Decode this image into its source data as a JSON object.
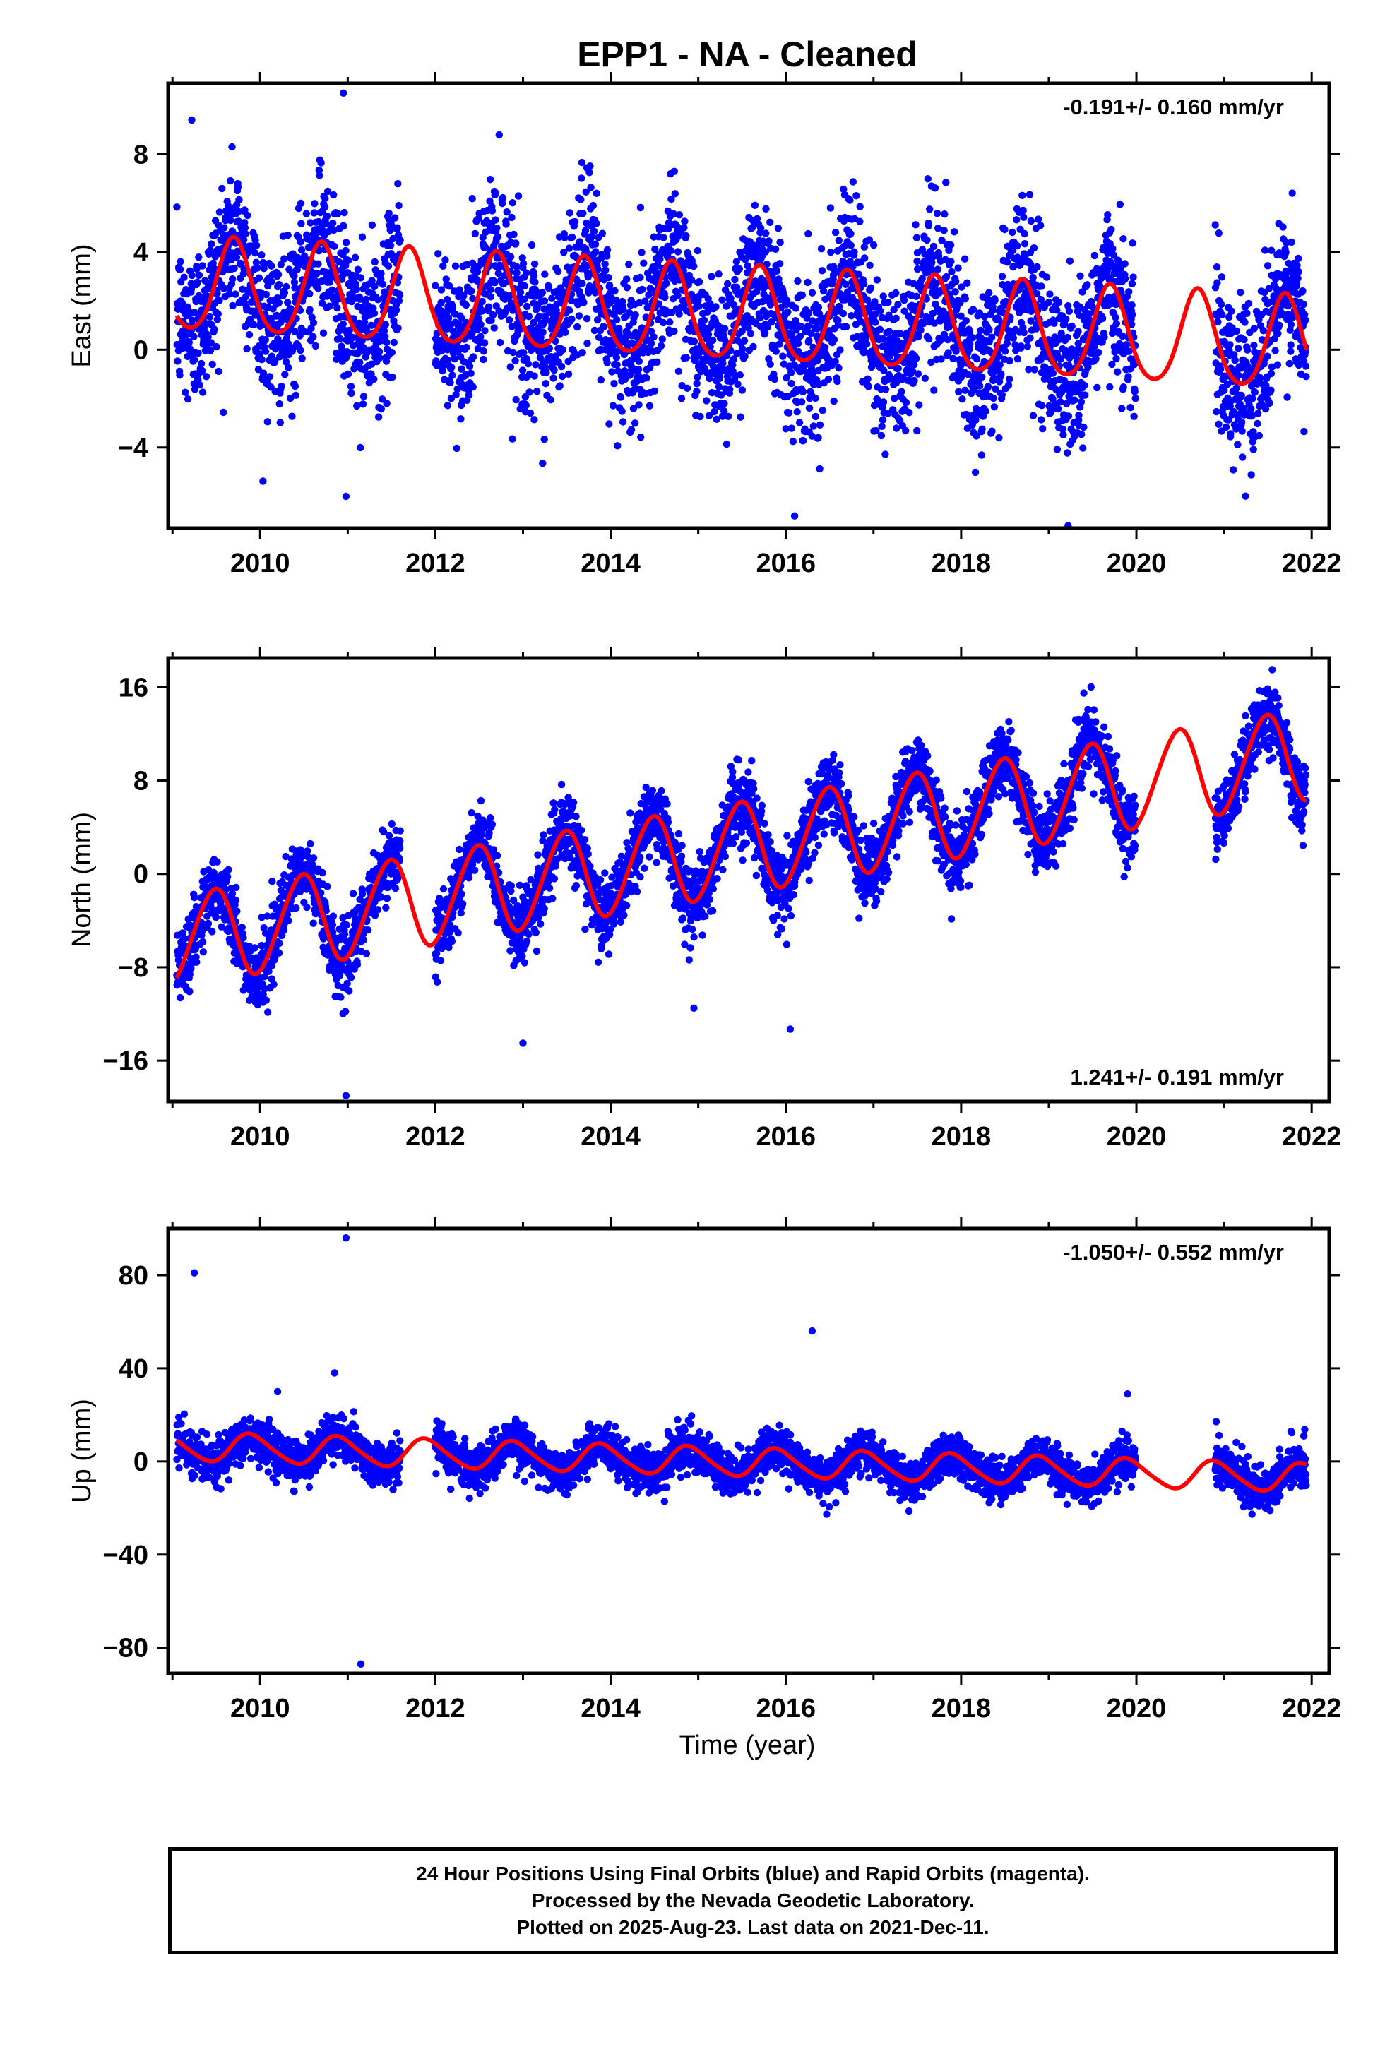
{
  "title": "EPP1  - NA - Cleaned",
  "xlabel": "Time (year)",
  "colors": {
    "points": "#0000ff",
    "model": "#ff0000",
    "axes": "#000000"
  },
  "chart_data": [
    {
      "type": "scatter",
      "component": "east",
      "ylabel": "East (mm)",
      "rate_label": "-0.191+/- 0.160 mm/yr",
      "rate_position": "top-right",
      "xlim": [
        2008.95,
        2022.2
      ],
      "ylim": [
        -7.3,
        10.9
      ],
      "xticks": [
        2010,
        2012,
        2014,
        2016,
        2018,
        2020,
        2022
      ],
      "yticks": [
        -4,
        0,
        4,
        8
      ],
      "grid": false,
      "series": [
        {
          "kind": "observations",
          "marker": "dot",
          "color": "#0000ff",
          "segments": [
            [
              2009.05,
              2011.6
            ],
            [
              2012.0,
              2019.99
            ],
            [
              2020.9,
              2021.94
            ]
          ],
          "scatter_mm": 1.6,
          "outliers": [
            [
              2009.22,
              9.4
            ],
            [
              2010.95,
              10.5
            ],
            [
              2010.98,
              -6.0
            ],
            [
              2019.22,
              -7.2
            ],
            [
              2016.1,
              -6.8
            ],
            [
              2013.8,
              5.9
            ]
          ]
        },
        {
          "kind": "model",
          "color": "#ff0000",
          "x_start": 2009.05,
          "x_end": 2021.94,
          "intercept_at_2009": 2.6,
          "rate_mm_per_yr": -0.191,
          "annual_amplitude": 1.9,
          "annual_peak": 0.7,
          "semiannual_amplitude": 0.25,
          "semiannual_peak": 0.2
        }
      ]
    },
    {
      "type": "scatter",
      "component": "north",
      "ylabel": "North (mm)",
      "rate_label": "1.241+/- 0.191 mm/yr",
      "rate_position": "bottom-right",
      "xlim": [
        2008.95,
        2022.2
      ],
      "ylim": [
        -19.5,
        18.5
      ],
      "xticks": [
        2010,
        2012,
        2014,
        2016,
        2018,
        2020,
        2022
      ],
      "yticks": [
        -16,
        -8,
        0,
        8,
        16
      ],
      "grid": false,
      "series": [
        {
          "kind": "observations",
          "marker": "dot",
          "color": "#0000ff",
          "segments": [
            [
              2009.05,
              2011.6
            ],
            [
              2012.0,
              2019.99
            ],
            [
              2020.9,
              2021.94
            ]
          ],
          "scatter_mm": 1.5,
          "outliers": [
            [
              2010.98,
              -19.0
            ],
            [
              2013.0,
              -14.5
            ],
            [
              2014.95,
              -11.5
            ],
            [
              2016.05,
              -13.3
            ],
            [
              2021.55,
              17.5
            ],
            [
              2019.4,
              15.5
            ]
          ]
        },
        {
          "kind": "model",
          "color": "#ff0000",
          "x_start": 2009.05,
          "x_end": 2021.94,
          "intercept_at_2009": -5.8,
          "rate_mm_per_yr": 1.241,
          "annual_amplitude": 3.9,
          "annual_peak": 0.47,
          "semiannual_amplitude": 0.3,
          "semiannual_peak": 0.1
        }
      ]
    },
    {
      "type": "scatter",
      "component": "up",
      "ylabel": "Up (mm)",
      "rate_label": "-1.050+/- 0.552 mm/yr",
      "rate_position": "top-right",
      "xlim": [
        2008.95,
        2022.2
      ],
      "ylim": [
        -91,
        100
      ],
      "xticks": [
        2010,
        2012,
        2014,
        2016,
        2018,
        2020,
        2022
      ],
      "yticks": [
        -80,
        -40,
        0,
        40,
        80
      ],
      "grid": false,
      "series": [
        {
          "kind": "observations",
          "marker": "dot",
          "color": "#0000ff",
          "segments": [
            [
              2009.05,
              2011.6
            ],
            [
              2012.0,
              2019.99
            ],
            [
              2020.9,
              2021.94
            ]
          ],
          "scatter_mm": 4.5,
          "outliers": [
            [
              2009.25,
              81
            ],
            [
              2010.98,
              96
            ],
            [
              2011.15,
              -87
            ],
            [
              2016.3,
              56
            ],
            [
              2010.85,
              38
            ],
            [
              2019.9,
              29
            ],
            [
              2010.2,
              30
            ]
          ]
        },
        {
          "kind": "model",
          "color": "#ff0000",
          "x_start": 2009.05,
          "x_end": 2021.94,
          "intercept_at_2009": 6.5,
          "rate_mm_per_yr": -1.05,
          "annual_amplitude": 6.0,
          "annual_peak": 0.9,
          "semiannual_amplitude": 0.8,
          "semiannual_peak": 0.3
        }
      ]
    }
  ],
  "footer": {
    "line1": "24 Hour Positions Using Final Orbits (blue) and Rapid Orbits (magenta).",
    "line2": "Processed by the Nevada Geodetic Laboratory.",
    "line3": "Plotted on 2025-Aug-23. Last data on 2021-Dec-11."
  }
}
